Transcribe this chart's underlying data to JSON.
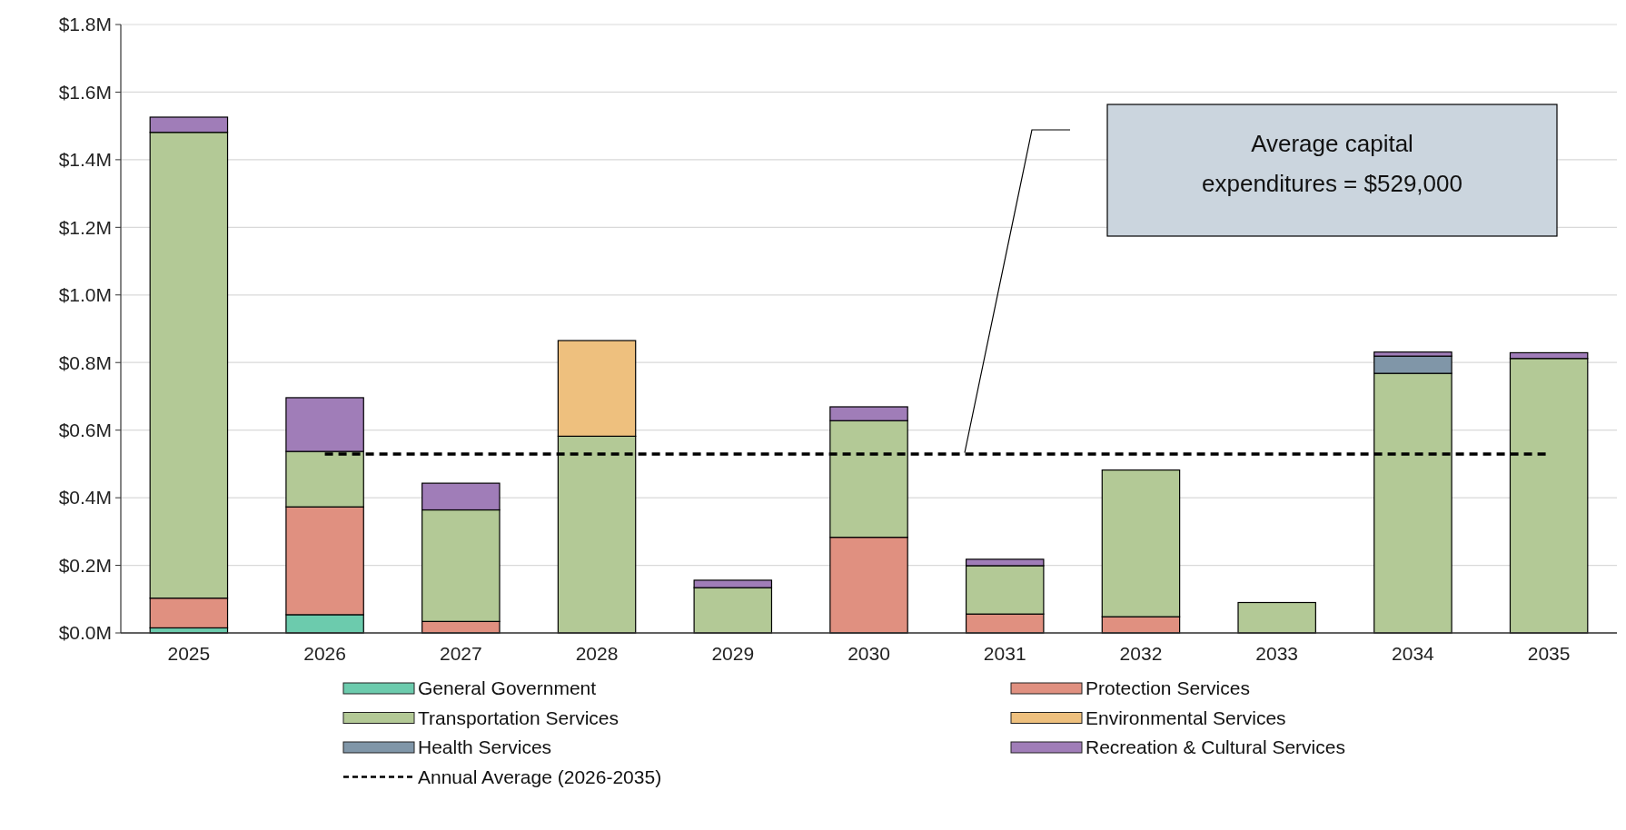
{
  "chart_data": {
    "type": "bar",
    "stacked": true,
    "categories": [
      "2025",
      "2026",
      "2027",
      "2028",
      "2029",
      "2030",
      "2031",
      "2032",
      "2033",
      "2034",
      "2035"
    ],
    "series": [
      {
        "name": "General Government",
        "color": "#6ccbad",
        "values": [
          0.015,
          0.054,
          null,
          null,
          null,
          null,
          null,
          null,
          null,
          null,
          null
        ]
      },
      {
        "name": "Protection Services",
        "color": "#e09080",
        "values": [
          0.088,
          0.319,
          0.034,
          null,
          null,
          0.283,
          0.056,
          0.048,
          null,
          null,
          null
        ]
      },
      {
        "name": "Transportation Services",
        "color": "#b3c996",
        "values": [
          1.378,
          0.164,
          0.33,
          0.582,
          0.134,
          0.345,
          0.143,
          0.434,
          0.09,
          0.768,
          0.812
        ]
      },
      {
        "name": "Environmental Services",
        "color": "#eec07e",
        "values": [
          null,
          null,
          null,
          0.283,
          null,
          null,
          null,
          null,
          null,
          null,
          null
        ]
      },
      {
        "name": "Health Services",
        "color": "#8096a8",
        "values": [
          null,
          null,
          null,
          null,
          null,
          null,
          null,
          null,
          null,
          0.051,
          null
        ]
      },
      {
        "name": "Recreation & Cultural Services",
        "color": "#a07db8",
        "values": [
          0.045,
          0.159,
          0.079,
          null,
          0.022,
          0.041,
          0.019,
          null,
          null,
          0.012,
          0.017
        ]
      },
      {
        "name": "Annual Average (2026-2035)",
        "type": "line",
        "color": "#000000",
        "line_style": "dashed",
        "marker": "none",
        "values": [
          null,
          0.529,
          0.529,
          0.529,
          0.529,
          0.529,
          0.529,
          0.529,
          0.529,
          0.529,
          0.529
        ]
      }
    ],
    "ylim": [
      0,
      1.8
    ],
    "yticks": [
      {
        "value": 0,
        "label": "$0.0M"
      },
      {
        "value": 0.2,
        "label": "$0.2M"
      },
      {
        "value": 0.4,
        "label": "$0.4M"
      },
      {
        "value": 0.6,
        "label": "$0.6M"
      },
      {
        "value": 0.8,
        "label": "$0.8M"
      },
      {
        "value": 1.0,
        "label": "$1.0M"
      },
      {
        "value": 1.2,
        "label": "$1.2M"
      },
      {
        "value": 1.4,
        "label": "$1.4M"
      },
      {
        "value": 1.6,
        "label": "$1.6M"
      },
      {
        "value": 1.8,
        "label": "$1.8M"
      }
    ],
    "grid": "y",
    "legend": "bottom",
    "annotations": [
      "Average capital\nexpenditures = $529,000"
    ]
  }
}
